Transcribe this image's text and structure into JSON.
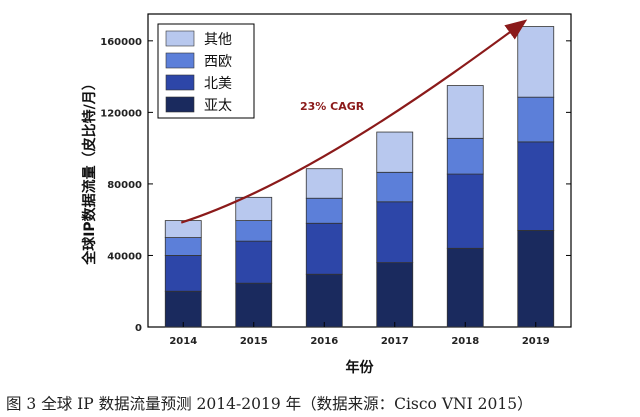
{
  "chart_data": {
    "type": "bar",
    "stacked": true,
    "categories": [
      "2014",
      "2015",
      "2016",
      "2017",
      "2018",
      "2019"
    ],
    "series": [
      {
        "name": "亚太",
        "color": "#1a2a5e",
        "values": [
          20000,
          24500,
          29500,
          36000,
          44000,
          54000
        ]
      },
      {
        "name": "北美",
        "color": "#2d46a8",
        "values": [
          20000,
          23500,
          28500,
          34000,
          41500,
          49500
        ]
      },
      {
        "name": "西欧",
        "color": "#5c7fd9",
        "values": [
          10000,
          11500,
          14000,
          16500,
          20000,
          25000
        ]
      },
      {
        "name": "其他",
        "color": "#b8c8ee",
        "values": [
          9500,
          13000,
          16500,
          22500,
          29500,
          39500
        ]
      }
    ],
    "xlabel": "年份",
    "ylabel": "全球IP数据流量（皮比特/月）",
    "ylim": [
      0,
      175000
    ],
    "yticks": [
      0,
      40000,
      80000,
      120000,
      160000
    ],
    "legend_position": "top-left",
    "annotation": {
      "text": "23% CAGR",
      "color": "#8b1a1a"
    }
  },
  "caption": "图 3 全球 IP 数据流量预测 2014-2019 年（数据来源：Cisco VNI 2015）"
}
